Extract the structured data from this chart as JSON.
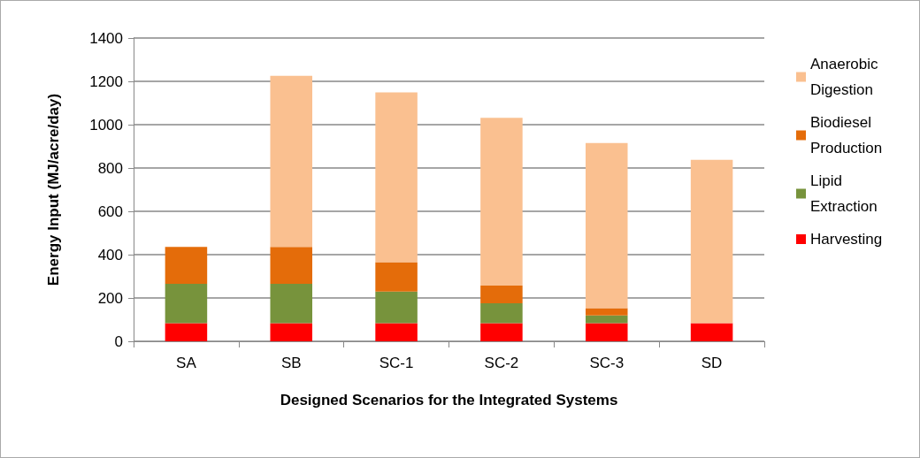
{
  "chart_data": {
    "type": "bar",
    "stacked": true,
    "xlabel": "Designed Scenarios for the Integrated Systems",
    "ylabel": "Energy Input (MJ/acre/day)",
    "categories": [
      "SA",
      "SB",
      "SC-1",
      "SC-2",
      "SC-3",
      "SD"
    ],
    "series": [
      {
        "name": "Harvesting",
        "color": "#ff0000",
        "values": [
          84,
          84,
          84,
          84,
          84,
          84
        ]
      },
      {
        "name": "Lipid Extraction",
        "color": "#77933c",
        "values": [
          181,
          181,
          146,
          92,
          35,
          0
        ]
      },
      {
        "name": "Biodiesel Production",
        "color": "#e46c0a",
        "values": [
          171,
          171,
          135,
          81,
          34,
          0
        ]
      },
      {
        "name": "Anaerobic Digestion",
        "color": "#fac090",
        "values": [
          0,
          790,
          784,
          775,
          762,
          754
        ]
      }
    ],
    "ylim": [
      0,
      1400
    ],
    "yticks": [
      0,
      200,
      400,
      600,
      800,
      1000,
      1200,
      1400
    ],
    "grid": "y",
    "legend": "top right"
  }
}
